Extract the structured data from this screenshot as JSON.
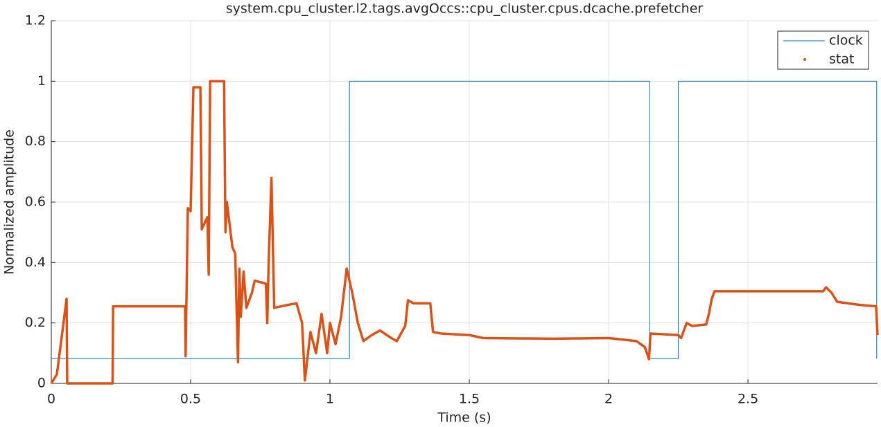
{
  "chart_data": {
    "type": "line",
    "title": "system.cpu_cluster.l2.tags.avgOccs::cpu_cluster.cpus.dcache.prefetcher",
    "xlabel": "Time (s)",
    "ylabel": "Normalized amplitude",
    "xlim": [
      0,
      2.965
    ],
    "ylim": [
      0,
      1.2
    ],
    "xticks": [
      0,
      0.5,
      1,
      1.5,
      2,
      2.5
    ],
    "yticks": [
      0,
      0.2,
      0.4,
      0.6,
      0.8,
      1,
      1.2
    ],
    "grid": true,
    "legend": "upper right",
    "series": [
      {
        "name": "clock",
        "color": "#0072bd",
        "style": "line",
        "x": [
          0,
          1.07,
          1.07,
          2.147,
          2.147,
          2.25,
          2.25,
          2.962,
          2.962
        ],
        "values": [
          0.082,
          0.082,
          1,
          1,
          0.082,
          0.082,
          1,
          1,
          0.082
        ]
      },
      {
        "name": "stat",
        "color": "#d95319",
        "style": "dots",
        "x": [
          0,
          0.02,
          0.055,
          0.057,
          0.22,
          0.222,
          0.48,
          0.482,
          0.49,
          0.5,
          0.51,
          0.535,
          0.54,
          0.56,
          0.565,
          0.57,
          0.62,
          0.625,
          0.63,
          0.65,
          0.66,
          0.67,
          0.675,
          0.68,
          0.69,
          0.7,
          0.72,
          0.73,
          0.77,
          0.775,
          0.78,
          0.79,
          0.8,
          0.85,
          0.88,
          0.9,
          0.91,
          0.93,
          0.95,
          0.97,
          0.99,
          1.0,
          1.02,
          1.04,
          1.06,
          1.08,
          1.1,
          1.12,
          1.15,
          1.18,
          1.22,
          1.24,
          1.27,
          1.28,
          1.3,
          1.36,
          1.37,
          1.4,
          1.5,
          1.55,
          1.8,
          2.0,
          2.1,
          2.13,
          2.145,
          2.15,
          2.25,
          2.26,
          2.28,
          2.3,
          2.35,
          2.36,
          2.37,
          2.38,
          2.77,
          2.78,
          2.8,
          2.82,
          2.9,
          2.96,
          2.965
        ],
        "values": [
          0,
          0.03,
          0.28,
          0,
          0,
          0.255,
          0.255,
          0.09,
          0.58,
          0.57,
          0.98,
          0.98,
          0.51,
          0.55,
          0.36,
          1,
          1,
          0.5,
          0.6,
          0.45,
          0.43,
          0.07,
          0.38,
          0.22,
          0.37,
          0.25,
          0.3,
          0.34,
          0.33,
          0.2,
          0.4,
          0.68,
          0.25,
          0.26,
          0.265,
          0.2,
          0.01,
          0.17,
          0.1,
          0.23,
          0.1,
          0.2,
          0.13,
          0.22,
          0.38,
          0.3,
          0.2,
          0.14,
          0.16,
          0.175,
          0.15,
          0.14,
          0.19,
          0.275,
          0.265,
          0.265,
          0.17,
          0.165,
          0.16,
          0.15,
          0.148,
          0.15,
          0.14,
          0.12,
          0.08,
          0.165,
          0.16,
          0.15,
          0.2,
          0.19,
          0.195,
          0.23,
          0.28,
          0.305,
          0.305,
          0.318,
          0.3,
          0.27,
          0.26,
          0.255,
          0.16
        ]
      }
    ]
  }
}
